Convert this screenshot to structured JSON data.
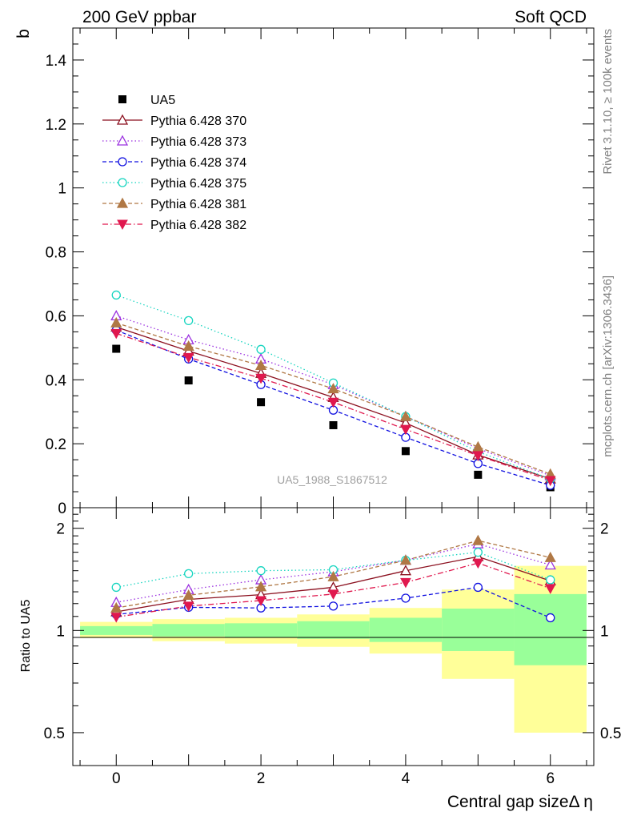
{
  "header": {
    "left": "200 GeV ppbar",
    "right": "Soft QCD"
  },
  "side_notes": {
    "rivet": "Rivet 3.1.10, ≥ 100k events",
    "mcplots": "mcplots.cern.ch [arXiv:1306.3436]"
  },
  "watermark": "UA5_1988_S1867512",
  "chart_data": [
    {
      "type": "scatter",
      "panel": "main",
      "ylabel": "b",
      "xlabel": "",
      "xlim": [
        -0.6,
        6.6
      ],
      "ylim": [
        0,
        1.5
      ],
      "yticks": [
        0,
        0.2,
        0.4,
        0.6,
        0.8,
        1,
        1.2,
        1.4
      ],
      "ytick_labels": [
        "0",
        "0.2",
        "0.4",
        "0.6",
        "0.8",
        "1",
        "1.2",
        "1.4"
      ],
      "legend_position": "top-left",
      "x": [
        0,
        1,
        2,
        3,
        4,
        5,
        6
      ],
      "series": [
        {
          "name": "UA5",
          "marker": "filled-square",
          "line": "none",
          "color": "#000000",
          "values": [
            0.497,
            0.398,
            0.33,
            0.258,
            0.177,
            0.103,
            0.064
          ]
        },
        {
          "name": "Pythia 6.428 370",
          "marker": "open-triangle-up",
          "line": "solid",
          "color": "#8b0f1e",
          "values": [
            0.565,
            0.49,
            0.42,
            0.345,
            0.265,
            0.165,
            0.09
          ]
        },
        {
          "name": "Pythia 6.428 373",
          "marker": "open-triangle-up",
          "line": "dotted",
          "color": "#9b30e0",
          "values": [
            0.6,
            0.525,
            0.465,
            0.385,
            0.285,
            0.185,
            0.1
          ]
        },
        {
          "name": "Pythia 6.428 374",
          "marker": "open-circle",
          "line": "dashed",
          "color": "#1010e0",
          "values": [
            0.555,
            0.465,
            0.385,
            0.305,
            0.22,
            0.138,
            0.07
          ]
        },
        {
          "name": "Pythia 6.428 375",
          "marker": "open-circle",
          "line": "dotted",
          "color": "#16d5c0",
          "values": [
            0.665,
            0.585,
            0.495,
            0.39,
            0.285,
            0.175,
            0.09
          ]
        },
        {
          "name": "Pythia 6.428 381",
          "marker": "filled-triangle-up",
          "line": "dashed",
          "color": "#b07845",
          "values": [
            0.578,
            0.505,
            0.445,
            0.372,
            0.285,
            0.19,
            0.105
          ]
        },
        {
          "name": "Pythia 6.428 382",
          "marker": "filled-triangle-down",
          "line": "dashdot",
          "color": "#e0184e",
          "values": [
            0.545,
            0.47,
            0.405,
            0.33,
            0.245,
            0.163,
            0.085
          ]
        }
      ]
    },
    {
      "type": "scatter",
      "panel": "ratio",
      "ylabel": "Ratio to UA5",
      "xlabel": "Central gap sizeΔ η",
      "xlim": [
        -0.6,
        6.6
      ],
      "ylim": [
        0.4,
        2.3
      ],
      "log_scale_y": true,
      "yticks": [
        0.5,
        1,
        2
      ],
      "ytick_labels": [
        "0.5",
        "1",
        "2"
      ],
      "xticks": [
        0,
        2,
        4,
        6
      ],
      "xtick_labels": [
        "0",
        "2",
        "4",
        "6"
      ],
      "x": [
        0,
        1,
        2,
        3,
        4,
        5,
        6
      ],
      "band_green": [
        [
          0.97,
          1.03
        ],
        [
          0.96,
          1.045
        ],
        [
          0.955,
          1.05
        ],
        [
          0.945,
          1.065
        ],
        [
          0.925,
          1.09
        ],
        [
          0.87,
          1.16
        ],
        [
          0.79,
          1.28
        ]
      ],
      "band_yellow": [
        [
          0.95,
          1.06
        ],
        [
          0.93,
          1.08
        ],
        [
          0.915,
          1.09
        ],
        [
          0.895,
          1.115
        ],
        [
          0.855,
          1.165
        ],
        [
          0.72,
          1.32
        ],
        [
          0.5,
          1.55
        ]
      ],
      "series": [
        {
          "name": "Pythia 6.428 370",
          "values": [
            1.135,
            1.235,
            1.275,
            1.34,
            1.5,
            1.65,
            1.4
          ]
        },
        {
          "name": "Pythia 6.428 373",
          "values": [
            1.21,
            1.32,
            1.41,
            1.49,
            1.61,
            1.8,
            1.56
          ]
        },
        {
          "name": "Pythia 6.428 374",
          "values": [
            1.115,
            1.17,
            1.165,
            1.18,
            1.245,
            1.34,
            1.09
          ]
        },
        {
          "name": "Pythia 6.428 375",
          "values": [
            1.34,
            1.47,
            1.5,
            1.51,
            1.61,
            1.7,
            1.41
          ]
        },
        {
          "name": "Pythia 6.428 381",
          "values": [
            1.165,
            1.27,
            1.345,
            1.44,
            1.61,
            1.84,
            1.64
          ]
        },
        {
          "name": "Pythia 6.428 382",
          "values": [
            1.095,
            1.18,
            1.225,
            1.28,
            1.385,
            1.58,
            1.33
          ]
        }
      ]
    }
  ]
}
